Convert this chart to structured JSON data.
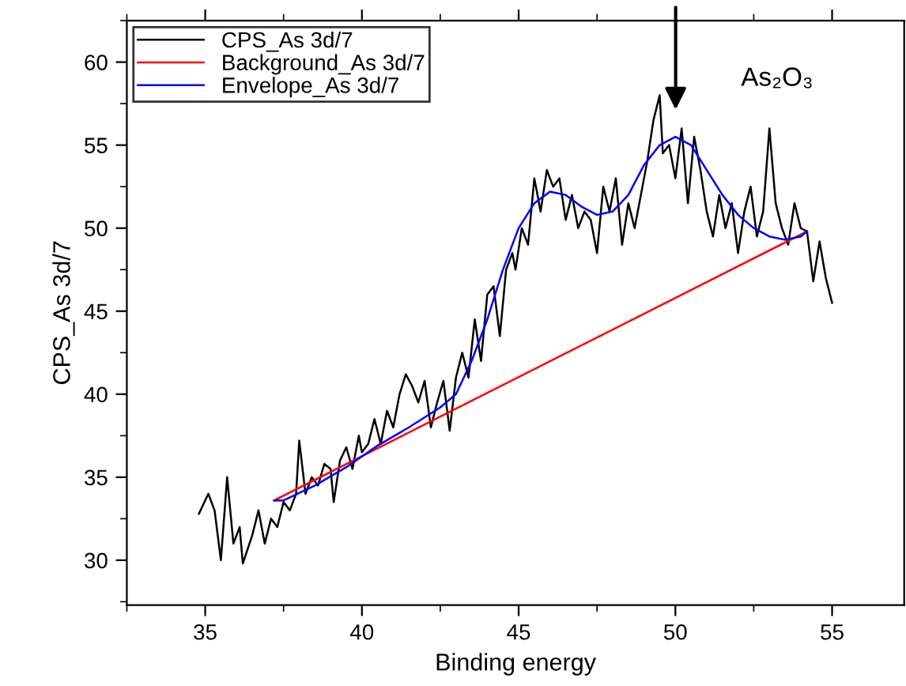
{
  "chart_data": {
    "type": "line",
    "xlabel": "Binding energy",
    "ylabel": "CPS_As 3d/7",
    "xlim": [
      32.5,
      57.3
    ],
    "ylim": [
      27.3,
      62.5
    ],
    "xticks": [
      35,
      40,
      45,
      50,
      55
    ],
    "yticks": [
      30,
      35,
      40,
      45,
      50,
      55,
      60
    ],
    "legend": "top left",
    "grid": false,
    "marker": "none",
    "line_style": "solid",
    "annotations": [
      "As₂O₃"
    ],
    "series": [
      {
        "name": "CPS_As 3d/7",
        "color": "#000000",
        "x": [
          34.8,
          35.1,
          35.3,
          35.5,
          35.7,
          35.9,
          36.1,
          36.2,
          36.5,
          36.7,
          36.9,
          37.1,
          37.3,
          37.5,
          37.7,
          37.9,
          38.0,
          38.2,
          38.4,
          38.6,
          38.8,
          39.0,
          39.1,
          39.3,
          39.5,
          39.7,
          39.9,
          40.0,
          40.2,
          40.4,
          40.6,
          40.8,
          41.0,
          41.2,
          41.4,
          41.6,
          41.8,
          42.0,
          42.2,
          42.4,
          42.6,
          42.8,
          43.0,
          43.2,
          43.4,
          43.6,
          43.8,
          44.0,
          44.2,
          44.4,
          44.6,
          44.8,
          44.9,
          45.1,
          45.3,
          45.5,
          45.7,
          45.9,
          46.1,
          46.3,
          46.5,
          46.7,
          46.9,
          47.1,
          47.3,
          47.5,
          47.7,
          47.9,
          48.1,
          48.3,
          48.5,
          48.7,
          48.9,
          49.1,
          49.3,
          49.5,
          49.6,
          49.8,
          50.0,
          50.2,
          50.4,
          50.6,
          50.8,
          51.0,
          51.2,
          51.4,
          51.6,
          51.8,
          52.0,
          52.2,
          52.4,
          52.6,
          52.8,
          53.0,
          53.2,
          53.4,
          53.6,
          53.8,
          54.0,
          54.2,
          54.4,
          54.6,
          54.8,
          55.0
        ],
        "values": [
          32.8,
          34.0,
          33.0,
          30.0,
          35.0,
          31.0,
          32.0,
          29.8,
          31.5,
          33.0,
          31.0,
          32.5,
          32.0,
          33.5,
          33.0,
          34.0,
          37.2,
          34.0,
          35.0,
          34.5,
          35.8,
          35.5,
          33.5,
          36.0,
          36.8,
          35.5,
          37.5,
          36.5,
          37.0,
          38.5,
          37.0,
          39.0,
          38.0,
          40.0,
          41.2,
          40.5,
          39.5,
          40.8,
          38.0,
          39.5,
          40.8,
          37.8,
          41.0,
          42.5,
          41.0,
          44.5,
          42.0,
          46.0,
          46.5,
          43.5,
          47.5,
          48.5,
          47.5,
          50.0,
          49.0,
          53.0,
          51.0,
          53.5,
          52.5,
          53.0,
          50.5,
          52.0,
          50.0,
          51.0,
          50.5,
          48.5,
          52.5,
          51.0,
          53.0,
          49.0,
          51.5,
          50.0,
          52.0,
          54.0,
          56.5,
          58.0,
          54.5,
          55.0,
          53.0,
          56.0,
          51.5,
          55.5,
          53.5,
          51.0,
          49.5,
          52.0,
          50.0,
          51.5,
          48.5,
          51.0,
          52.5,
          49.5,
          51.0,
          56.0,
          51.5,
          50.0,
          49.0,
          51.5,
          50.0,
          49.8,
          46.8,
          49.2,
          47.0,
          45.5
        ]
      },
      {
        "name": "Background_As 3d/7",
        "color": "#ff0000",
        "x": [
          37.2,
          54.2
        ],
        "values": [
          33.6,
          49.8
        ]
      },
      {
        "name": "Envelope_As 3d/7",
        "color": "#0000ff",
        "x": [
          37.2,
          37.5,
          38.5,
          39.5,
          40.5,
          41.5,
          42.5,
          43.0,
          43.5,
          44.0,
          44.5,
          45.0,
          45.5,
          46.0,
          46.5,
          47.0,
          47.5,
          48.0,
          48.5,
          49.0,
          49.5,
          50.0,
          50.5,
          51.0,
          51.5,
          52.0,
          52.5,
          53.0,
          53.5,
          54.0,
          54.2
        ],
        "values": [
          33.6,
          33.6,
          34.5,
          35.6,
          36.9,
          38.0,
          39.2,
          40.0,
          42.0,
          44.5,
          47.5,
          50.0,
          51.5,
          52.2,
          52.0,
          51.3,
          50.8,
          51.0,
          52.0,
          53.8,
          55.0,
          55.5,
          55.0,
          53.5,
          52.0,
          50.8,
          50.0,
          49.5,
          49.3,
          49.5,
          49.8
        ]
      }
    ]
  }
}
